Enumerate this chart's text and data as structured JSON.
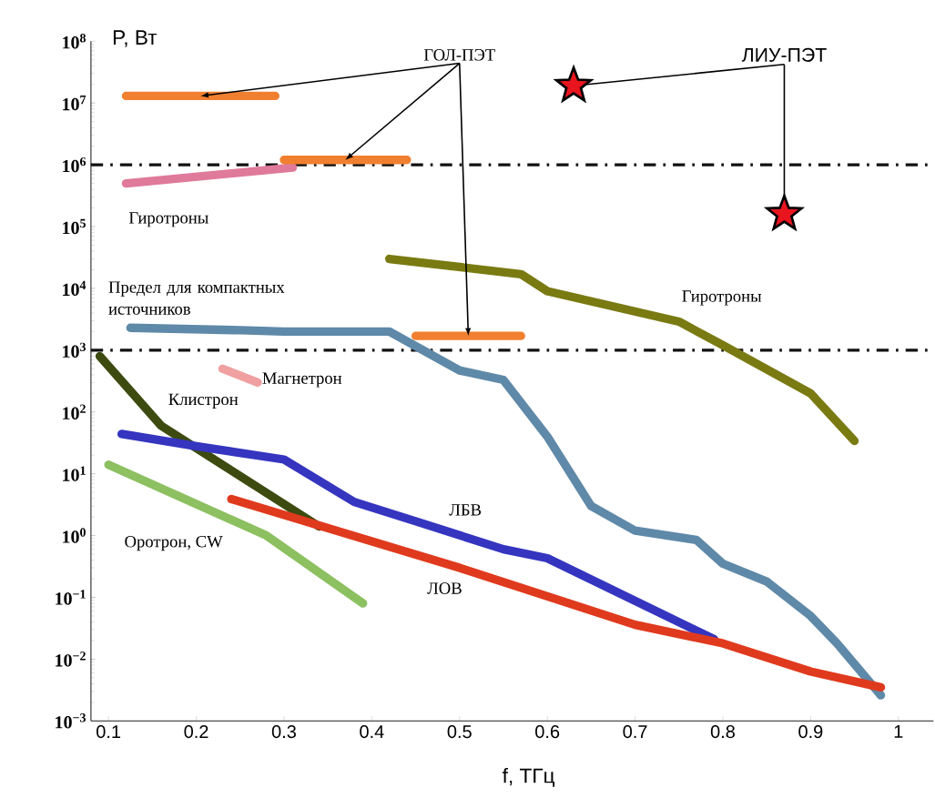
{
  "chart_data": {
    "type": "line",
    "xlabel": "f, ТГц",
    "ylabel": "P, Вт",
    "log": "y",
    "xlim": [
      0.08,
      1.04
    ],
    "ylim": [
      0.001,
      100000000
    ],
    "xticks": [
      0.1,
      0.2,
      0.3,
      0.4,
      0.5,
      0.6,
      0.7,
      0.8,
      0.9,
      1
    ],
    "yticks": [
      {
        "value": 0.001,
        "label": "10$^{−3}$"
      },
      {
        "value": 0.01,
        "label": "10$^{−2}$"
      },
      {
        "value": 0.1,
        "label": "10$^{−1}$"
      },
      {
        "value": 1,
        "label": "10$^{0}$"
      },
      {
        "value": 10,
        "label": "10$^{1}$"
      },
      {
        "value": 100,
        "label": "10$^{2}$"
      },
      {
        "value": 1000,
        "label": "10$^{3}$"
      },
      {
        "value": 10000,
        "label": "10$^{4}$"
      },
      {
        "value": 100000,
        "label": "10$^{5}$"
      },
      {
        "value": 1000000,
        "label": "10$^{6}$"
      },
      {
        "value": 10000000,
        "label": "10$^{7}$"
      },
      {
        "value": 100000000,
        "label": "10$^{8}$"
      }
    ],
    "grid": false,
    "marker": "none",
    "line_style": "solid",
    "ref_lines": [
      {
        "axis": "y",
        "value": 1000000,
        "color": "#111111",
        "line_style": "dashdot"
      },
      {
        "axis": "y",
        "value": 1000,
        "label": "Предел для компактных источников",
        "color": "#111111",
        "line_style": "dashdot"
      }
    ],
    "series": [
      {
        "name": "Гиротроны",
        "color": "#e07a9a",
        "x": [
          0.12,
          0.31
        ],
        "values": [
          500000,
          900000
        ]
      },
      {
        "name": "Гиротроны",
        "color": "#7a7a12",
        "x": [
          0.42,
          0.57,
          0.6,
          0.75,
          0.8,
          0.9,
          0.95
        ],
        "values": [
          30000,
          17000,
          9000,
          2900,
          1200,
          200,
          34
        ]
      },
      {
        "color": "#5f89a8",
        "x": [
          0.125,
          0.25,
          0.3,
          0.42,
          0.5,
          0.55,
          0.6,
          0.65,
          0.7,
          0.77,
          0.8,
          0.85,
          0.9,
          0.93,
          0.98
        ],
        "values": [
          2300,
          2100,
          2000,
          2000,
          470,
          330,
          40,
          3,
          1.2,
          0.85,
          0.35,
          0.18,
          0.05,
          0.018,
          0.0026
        ]
      },
      {
        "name": "Магнетрон",
        "color": "#f0a0a0",
        "x": [
          0.23,
          0.27
        ],
        "values": [
          500,
          300
        ]
      },
      {
        "name": "Клистрон",
        "color": "#3d4a10",
        "x": [
          0.09,
          0.16,
          0.34
        ],
        "values": [
          800,
          60,
          1.4
        ]
      },
      {
        "name": "Оротрон, CW",
        "color": "#8cc060",
        "x": [
          0.1,
          0.28,
          0.39
        ],
        "values": [
          14,
          1,
          0.08
        ]
      },
      {
        "name": "ЛБВ",
        "color": "#3535c0",
        "x": [
          0.115,
          0.2,
          0.3,
          0.38,
          0.45,
          0.55,
          0.6,
          0.79
        ],
        "values": [
          44,
          28,
          17,
          3.5,
          1.7,
          0.6,
          0.43,
          0.021
        ]
      },
      {
        "name": "ЛОВ",
        "color": "#e03a1e",
        "x": [
          0.24,
          0.5,
          0.7,
          0.8,
          0.9,
          0.98
        ],
        "values": [
          3.9,
          0.3,
          0.036,
          0.018,
          0.0063,
          0.0035
        ]
      },
      {
        "name": "ГОЛ-ПЭТ",
        "color": "#f08030",
        "x": [
          0.12,
          0.29,
          0.295,
          0.3,
          0.44,
          0.445,
          0.45,
          0.57
        ],
        "values": [
          13000000,
          13000000,
          null,
          1200000,
          1200000,
          null,
          1700,
          1700
        ]
      },
      {
        "name": "ЛИУ-ПЭТ",
        "type": "scatter",
        "marker": "star",
        "color": "#e8141e",
        "x": [
          0.63,
          0.87
        ],
        "values": [
          19000000,
          160000
        ]
      }
    ]
  }
}
